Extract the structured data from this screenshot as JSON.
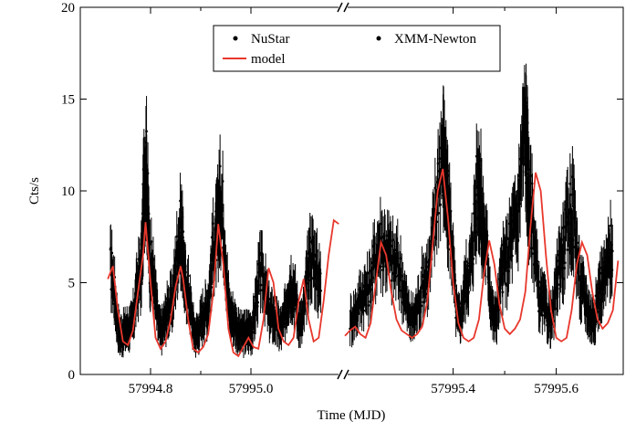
{
  "chart_data": {
    "type": "line",
    "xlabel": "Time (MJD)",
    "ylabel": "Cts/s",
    "ylim": [
      0,
      20
    ],
    "y_ticks": [
      0,
      5,
      10,
      15,
      20
    ],
    "x_ticks": [
      {
        "value": 57994.8,
        "label": "57994.8"
      },
      {
        "value": 57995.0,
        "label": "57995.0"
      },
      {
        "value": 57995.4,
        "label": "57995.4"
      },
      {
        "value": 57995.6,
        "label": "57995.6"
      }
    ],
    "x_minor_ticks": [
      57994.9,
      57995.5
    ],
    "broken_axis": {
      "left_range": [
        57994.66,
        57995.18
      ],
      "right_range": [
        57995.19,
        57995.73
      ],
      "break_mark": "//"
    },
    "grid": false,
    "legend": {
      "placement": "top-center",
      "entries": [
        {
          "label": "NuStar",
          "marker": "dot",
          "color": "#000000"
        },
        {
          "label": "XMM-Newton",
          "marker": "dot",
          "color": "#000000"
        },
        {
          "label": "model",
          "marker": "line",
          "color": "#e8372c"
        }
      ]
    },
    "colors": {
      "data": "#000000",
      "model": "#e8372c"
    },
    "series": [
      {
        "name": "NuStar",
        "x": [
          57994.72,
          57994.74,
          57994.76,
          57994.78,
          57994.79,
          57994.8,
          57994.82,
          57994.84,
          57994.86,
          57994.87,
          57994.89,
          57994.91,
          57994.93,
          57994.94,
          57994.96,
          57994.98,
          57995.0,
          57995.02,
          57995.04,
          57995.06,
          57995.08,
          57995.1,
          57995.12,
          57995.14
        ],
        "y": [
          5.8,
          2.2,
          2.6,
          5.5,
          11.5,
          6.0,
          2.4,
          3.8,
          7.8,
          5.0,
          2.2,
          3.5,
          7.5,
          9.5,
          3.2,
          2.2,
          2.4,
          5.5,
          3.2,
          2.5,
          5.0,
          2.8,
          6.5,
          5.0
        ]
      },
      {
        "name": "XMM-Newton",
        "x": [
          57995.2,
          57995.23,
          57995.26,
          57995.29,
          57995.32,
          57995.35,
          57995.38,
          57995.39,
          57995.41,
          57995.43,
          57995.45,
          57995.46,
          57995.48,
          57995.5,
          57995.52,
          57995.54,
          57995.55,
          57995.57,
          57995.59,
          57995.61,
          57995.63,
          57995.65,
          57995.67,
          57995.69,
          57995.71
        ],
        "y": [
          3.0,
          4.5,
          7.2,
          6.0,
          3.0,
          5.5,
          12.0,
          9.0,
          3.0,
          5.5,
          10.5,
          7.5,
          3.0,
          6.0,
          8.0,
          13.0,
          9.0,
          4.0,
          3.0,
          6.5,
          9.0,
          4.5,
          3.0,
          5.0,
          7.0
        ]
      },
      {
        "name": "model",
        "x": [
          57994.715,
          57994.725,
          57994.735,
          57994.745,
          57994.755,
          57994.765,
          57994.775,
          57994.785,
          57994.79,
          57994.8,
          57994.81,
          57994.82,
          57994.83,
          57994.84,
          57994.85,
          57994.86,
          57994.865,
          57994.875,
          57994.885,
          57994.895,
          57994.905,
          57994.915,
          57994.925,
          57994.935,
          57994.945,
          57994.955,
          57994.965,
          57994.975,
          57994.985,
          57994.995,
          57995.005,
          57995.015,
          57995.025,
          57995.035,
          57995.045,
          57995.055,
          57995.065,
          57995.075,
          57995.085,
          57995.095,
          57995.105,
          57995.115,
          57995.125,
          57995.135,
          57995.145,
          57995.155,
          57995.165,
          57995.175,
          57995.19,
          57995.2,
          57995.21,
          57995.22,
          57995.23,
          57995.24,
          57995.25,
          57995.26,
          57995.27,
          57995.28,
          57995.29,
          57995.3,
          57995.31,
          57995.32,
          57995.33,
          57995.34,
          57995.35,
          57995.36,
          57995.37,
          57995.38,
          57995.39,
          57995.4,
          57995.41,
          57995.42,
          57995.43,
          57995.44,
          57995.45,
          57995.46,
          57995.47,
          57995.48,
          57995.49,
          57995.5,
          57995.51,
          57995.52,
          57995.53,
          57995.54,
          57995.55,
          57995.56,
          57995.57,
          57995.58,
          57995.59,
          57995.6,
          57995.61,
          57995.62,
          57995.63,
          57995.64,
          57995.65,
          57995.66,
          57995.67,
          57995.68,
          57995.69,
          57995.7,
          57995.71,
          57995.72
        ],
        "y": [
          5.2,
          5.9,
          3.5,
          1.8,
          1.6,
          2.4,
          4.5,
          6.5,
          8.3,
          5.0,
          2.0,
          1.4,
          1.8,
          3.0,
          4.8,
          5.9,
          5.2,
          3.0,
          1.4,
          1.2,
          1.5,
          2.2,
          4.5,
          8.2,
          6.0,
          2.5,
          1.2,
          1.0,
          1.5,
          2.0,
          1.5,
          1.4,
          3.0,
          5.8,
          5.0,
          2.5,
          1.8,
          1.6,
          2.0,
          4.0,
          5.2,
          3.0,
          1.8,
          2.0,
          4.0,
          6.5,
          8.4,
          8.2,
          2.1,
          2.4,
          2.6,
          2.2,
          2.0,
          2.8,
          5.0,
          7.2,
          6.5,
          4.5,
          3.0,
          2.4,
          2.2,
          2.0,
          2.2,
          2.6,
          4.0,
          7.0,
          10.0,
          11.2,
          8.5,
          5.0,
          2.8,
          2.0,
          1.8,
          2.0,
          3.0,
          5.5,
          7.3,
          6.0,
          3.8,
          2.5,
          2.2,
          2.5,
          3.0,
          4.5,
          8.0,
          11.0,
          10.0,
          6.5,
          3.5,
          2.0,
          1.8,
          2.0,
          3.5,
          6.0,
          7.2,
          6.5,
          4.5,
          3.0,
          2.5,
          2.8,
          3.5,
          6.2
        ]
      }
    ]
  }
}
